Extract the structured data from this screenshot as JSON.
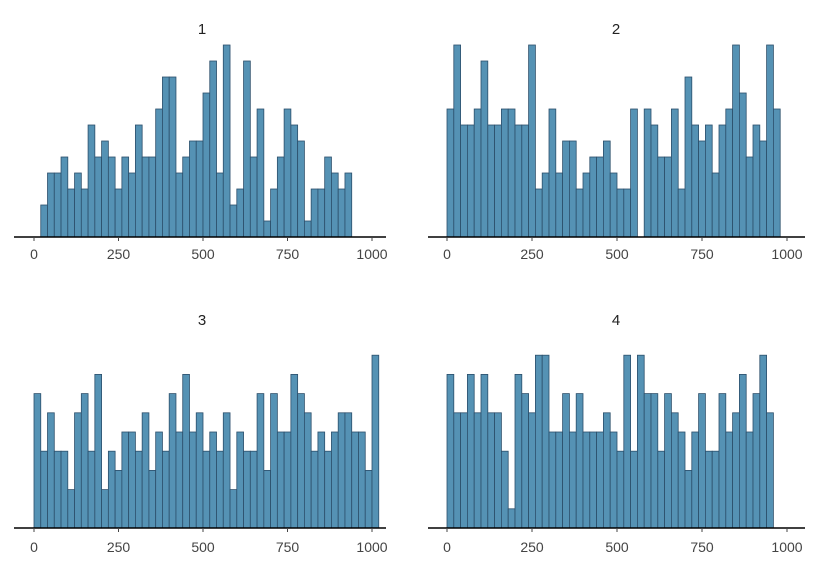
{
  "colors": {
    "bar_fill": "#5592b4",
    "bar_stroke": "#2c4f6b",
    "axis": "#000000",
    "text": "#222222"
  },
  "chart_data": [
    {
      "type": "bar",
      "title": "1",
      "xlim": [
        0,
        1000
      ],
      "xticks": [
        0,
        250,
        500,
        750,
        1000
      ],
      "ylim": [
        0,
        12
      ],
      "bin_width": 20,
      "values": [
        0,
        2,
        4,
        4,
        5,
        3,
        4,
        3,
        7,
        5,
        6,
        5,
        3,
        5,
        4,
        7,
        5,
        5,
        8,
        10,
        10,
        4,
        5,
        6,
        6,
        9,
        11,
        4,
        12,
        2,
        3,
        11,
        5,
        8,
        1,
        3,
        5,
        8,
        7,
        6,
        1,
        3,
        3,
        5,
        4,
        3,
        4
      ]
    },
    {
      "type": "bar",
      "title": "2",
      "xlim": [
        0,
        1000
      ],
      "xticks": [
        0,
        250,
        500,
        750,
        1000
      ],
      "ylim": [
        0,
        12
      ],
      "bin_width": 20,
      "values": [
        8,
        12,
        7,
        7,
        8,
        11,
        7,
        7,
        8,
        8,
        7,
        7,
        12,
        3,
        4,
        8,
        4,
        6,
        6,
        3,
        4,
        5,
        5,
        6,
        4,
        3,
        3,
        8,
        0,
        8,
        7,
        5,
        5,
        8,
        3,
        10,
        7,
        6,
        7,
        4,
        7,
        8,
        12,
        9,
        5,
        7,
        6,
        12,
        8
      ]
    },
    {
      "type": "bar",
      "title": "3",
      "xlim": [
        0,
        1000
      ],
      "xticks": [
        0,
        250,
        500,
        750,
        1000
      ],
      "ylim": [
        0,
        10
      ],
      "bin_width": 20,
      "values": [
        7,
        4,
        6,
        4,
        4,
        2,
        6,
        7,
        4,
        8,
        2,
        4,
        3,
        5,
        5,
        4,
        6,
        3,
        5,
        4,
        7,
        5,
        8,
        5,
        6,
        4,
        5,
        4,
        6,
        2,
        5,
        4,
        4,
        7,
        3,
        7,
        5,
        5,
        8,
        7,
        6,
        4,
        5,
        4,
        5,
        6,
        6,
        5,
        5,
        3,
        9
      ]
    },
    {
      "type": "bar",
      "title": "4",
      "xlim": [
        0,
        1000
      ],
      "xticks": [
        0,
        250,
        500,
        750,
        1000
      ],
      "ylim": [
        0,
        10
      ],
      "bin_width": 20,
      "values": [
        8,
        6,
        6,
        8,
        6,
        8,
        6,
        6,
        4,
        1,
        8,
        7,
        6,
        9,
        9,
        5,
        5,
        7,
        5,
        7,
        5,
        5,
        5,
        6,
        5,
        4,
        9,
        4,
        9,
        7,
        7,
        4,
        7,
        6,
        5,
        3,
        5,
        7,
        4,
        4,
        7,
        5,
        6,
        8,
        5,
        7,
        9,
        6
      ]
    }
  ]
}
